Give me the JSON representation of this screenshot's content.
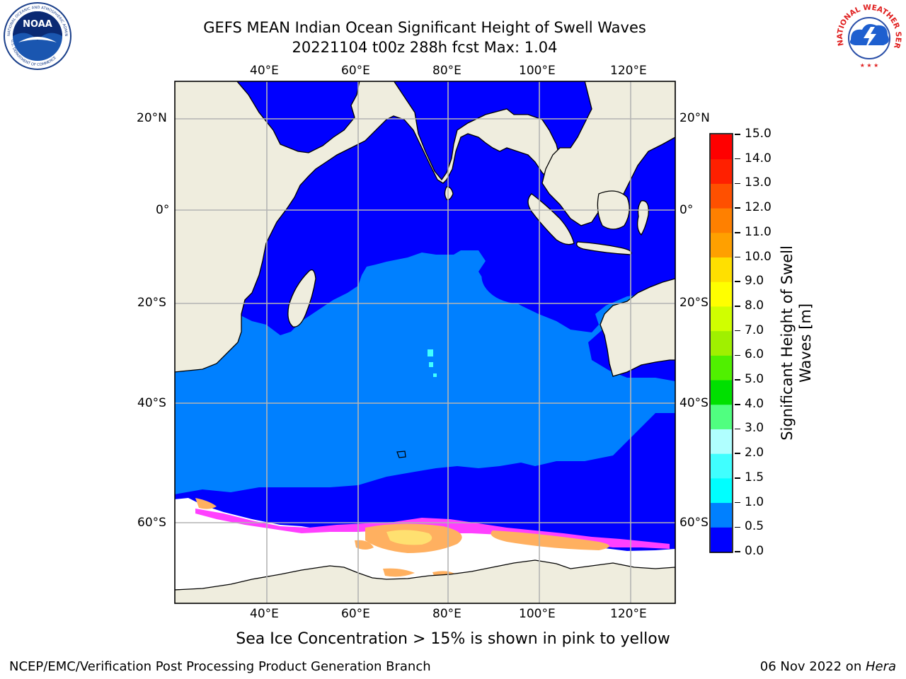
{
  "title": {
    "line1": "GEFS MEAN Indian Ocean Significant Height of Swell Waves",
    "line2": "20221104 t00z 288h fcst   Max: 1.04"
  },
  "map": {
    "lon_ticks_top": [
      "40°E",
      "60°E",
      "80°E",
      "100°E",
      "120°E"
    ],
    "lon_ticks_bottom": [
      "40°E",
      "60°E",
      "80°E",
      "100°E",
      "120°E"
    ],
    "lat_ticks_left": [
      "20°N",
      "0°",
      "20°S",
      "40°S",
      "60°S"
    ],
    "lat_ticks_right": [
      "20°N",
      "0°",
      "20°S",
      "40°S",
      "60°S"
    ],
    "colors": {
      "land": "#efedde",
      "ocean_0_0p5": "#0000ff",
      "ocean_0p5_1": "#0080ff",
      "ice_white": "#ffffff",
      "ice_pink": "#ff40ff",
      "ice_orange": "#ffb060",
      "ice_yellow": "#ffe070",
      "grid": "#b4b4b4",
      "coast": "#000000"
    }
  },
  "colorbar": {
    "label_line1": "Significant Height of Swell",
    "label_line2": "Waves [m]",
    "ticks": [
      "0.0",
      "0.5",
      "1.0",
      "1.5",
      "2.0",
      "3.0",
      "4.0",
      "5.0",
      "6.0",
      "7.0",
      "8.0",
      "9.0",
      "10.0",
      "11.0",
      "12.0",
      "13.0",
      "14.0",
      "15.0"
    ],
    "colors": [
      "#0000ff",
      "#0080ff",
      "#00ffff",
      "#40ffff",
      "#80ffff",
      "#b0ffff",
      "#50ff80",
      "#00e000",
      "#50f000",
      "#a0f000",
      "#d0ff00",
      "#ffff00",
      "#ffe000",
      "#ffc000",
      "#ffa000",
      "#ff8000",
      "#ff5000",
      "#ff2000",
      "#ff0000"
    ]
  },
  "caption": "Sea Ice Concentration > 15% is shown in pink to yellow",
  "footer": {
    "left": "NCEP/EMC/Verification Post Processing Product Generation Branch",
    "right_date": "06 Nov 2022 on ",
    "right_machine": "Hera"
  },
  "logos": {
    "left_logo_text": "NOAA",
    "left_ring_top": "NATIONAL OCEANIC AND ATMOSPHERIC ADMINISTRATION",
    "left_ring_bottom": "U.S. DEPARTMENT OF COMMERCE",
    "right_ring_text": "NATIONAL WEATHER SERVICE"
  }
}
